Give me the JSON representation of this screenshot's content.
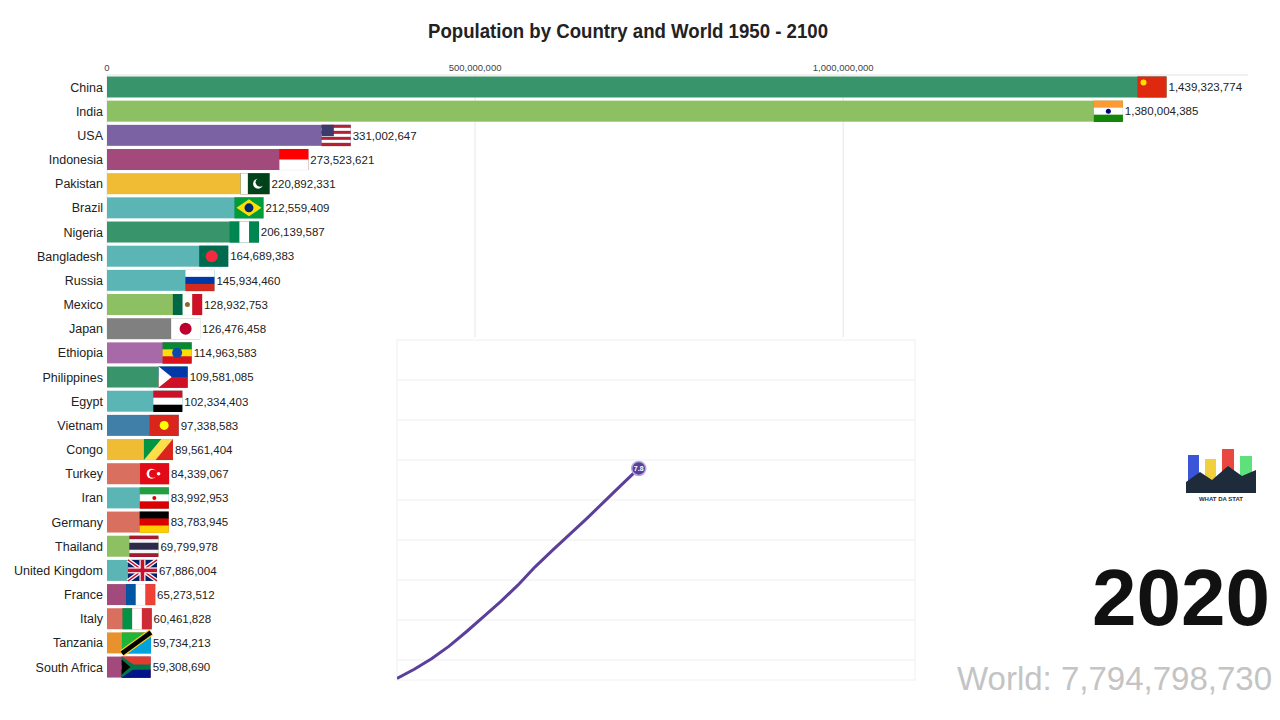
{
  "chart_data": [
    {
      "type": "bar",
      "orientation": "horizontal",
      "title": "Population by Country and World 1950 - 2100",
      "categories": [
        "China",
        "India",
        "USA",
        "Indonesia",
        "Pakistan",
        "Brazil",
        "Nigeria",
        "Bangladesh",
        "Russia",
        "Mexico",
        "Japan",
        "Ethiopia",
        "Philippines",
        "Egypt",
        "Vietnam",
        "Congo",
        "Turkey",
        "Iran",
        "Germany",
        "Thailand",
        "United Kingdom",
        "France",
        "Italy",
        "Tanzania",
        "South Africa"
      ],
      "values": [
        1439323774,
        1380004385,
        331002647,
        273523621,
        220892331,
        212559409,
        206139587,
        164689383,
        145934460,
        128932753,
        126476458,
        114963583,
        109581085,
        102334403,
        97338583,
        89561404,
        84339067,
        83992953,
        83783945,
        69799978,
        67886004,
        65273512,
        60461828,
        59734213,
        59308690
      ],
      "value_labels": [
        "1,439,323,774",
        "1,380,004,385",
        "331,002,647",
        "273,523,621",
        "220,892,331",
        "212,559,409",
        "206,139,587",
        "164,689,383",
        "145,934,460",
        "128,932,753",
        "126,476,458",
        "114,963,583",
        "109,581,085",
        "102,334,403",
        "97,338,583",
        "89,561,404",
        "84,339,067",
        "83,992,953",
        "83,783,945",
        "69,799,978",
        "67,886,004",
        "65,273,512",
        "60,461,828",
        "59,734,213",
        "59,308,690"
      ],
      "colors": [
        "#38946b",
        "#8cc063",
        "#7b62a3",
        "#a34a7d",
        "#f0bc33",
        "#5bb5b5",
        "#38946b",
        "#5bb5b5",
        "#5bb5b5",
        "#8cc063",
        "#808080",
        "#a869a8",
        "#38946b",
        "#5bb5b5",
        "#3f7fa8",
        "#f0bc33",
        "#d9705f",
        "#5bb5b5",
        "#d9705f",
        "#8cc063",
        "#5bb5b5",
        "#a34a7d",
        "#d9705f",
        "#e8922e",
        "#a34a7d"
      ],
      "xlim": [
        0,
        1550000000
      ],
      "xticks": [
        0,
        {
          "value": 500000000,
          "label": "500,000,000"
        },
        {
          "value": 1000000000,
          "label": "1,000,000,000"
        }
      ],
      "grid": true,
      "data_labels": true,
      "annotations": [
        "2020",
        "World: 7,794,798,730",
        "WHAT DA STAT"
      ]
    },
    {
      "type": "line",
      "x": [
        1950,
        1955,
        1960,
        1965,
        1970,
        1975,
        1980,
        1985,
        1990,
        1995,
        2000,
        2005,
        2010,
        2015,
        2020
      ],
      "values": [
        2.54,
        2.77,
        3.03,
        3.34,
        3.7,
        4.08,
        4.46,
        4.87,
        5.33,
        5.74,
        6.14,
        6.54,
        6.96,
        7.38,
        7.79
      ],
      "value_labels": [
        null,
        null,
        null,
        null,
        null,
        null,
        null,
        null,
        null,
        null,
        null,
        null,
        null,
        null,
        "7.8"
      ],
      "color": "#5b3f99",
      "xlim": [
        1950,
        2100
      ],
      "ylim": [
        2.5,
        11
      ],
      "yticks": [
        3,
        4,
        5,
        6,
        7,
        8,
        9,
        10
      ],
      "grid": true,
      "tick_labels": false,
      "data_labels": true
    }
  ]
}
